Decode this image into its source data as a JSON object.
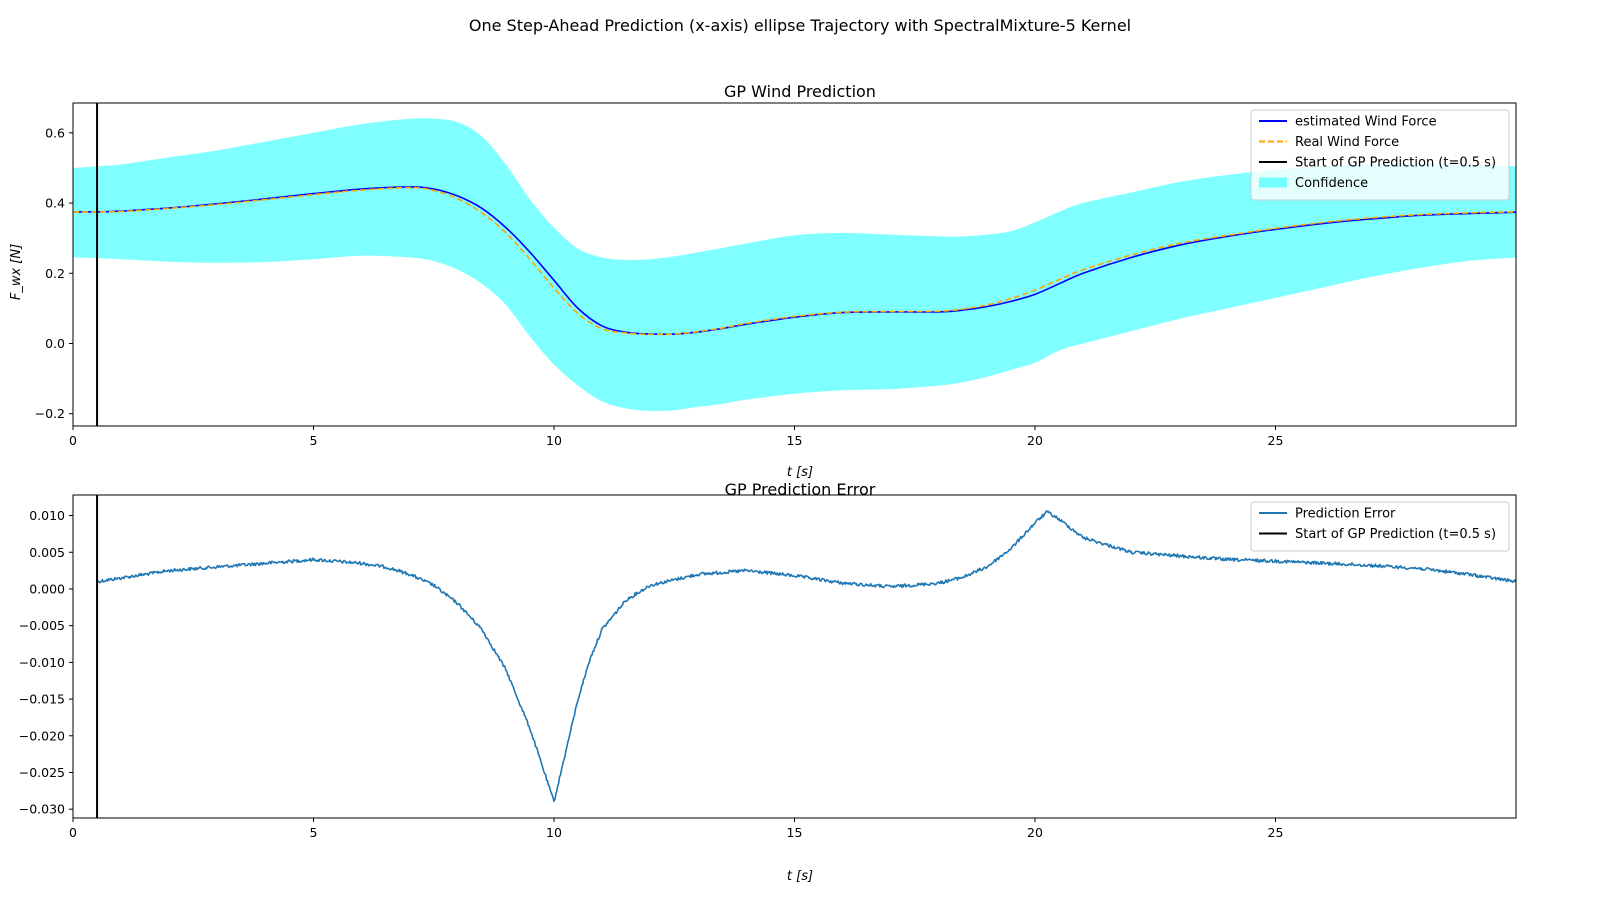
{
  "figure": {
    "suptitle": "One Step-Ahead Prediction (x-axis) ellipse Trajectory with SpectralMixture-5 Kernel"
  },
  "chart_data": [
    {
      "type": "line",
      "title": "GP Wind Prediction",
      "xlabel": "t [s]",
      "ylabel": "F_wx [N]",
      "xlim": [
        0,
        30
      ],
      "ylim": [
        -0.235,
        0.685
      ],
      "xticks": [
        0,
        5,
        10,
        15,
        20,
        25
      ],
      "xtick_labels": [
        "0",
        "5",
        "10",
        "15",
        "20",
        "25"
      ],
      "yticks": [
        -0.2,
        0.0,
        0.2,
        0.4,
        0.6
      ],
      "ytick_labels": [
        "−0.2",
        "0.0",
        "0.2",
        "0.4",
        "0.6"
      ],
      "grid": false,
      "legend_position": "upper right",
      "x": [
        0,
        0.5,
        1,
        2,
        3,
        4,
        5,
        6,
        7,
        7.5,
        8,
        8.5,
        9,
        9.5,
        10,
        10.5,
        11,
        11.5,
        12,
        12.5,
        13,
        13.5,
        14,
        15,
        16,
        17,
        18,
        18.5,
        19,
        19.5,
        20,
        20.5,
        21,
        22,
        23,
        24,
        25,
        26,
        27,
        28,
        29,
        30
      ],
      "series": [
        {
          "name": "estimated Wind Force",
          "color": "#0000ff",
          "style": "solid",
          "values": [
            0.375,
            0.375,
            0.377,
            0.386,
            0.398,
            0.412,
            0.427,
            0.44,
            0.446,
            0.44,
            0.42,
            0.385,
            0.33,
            0.26,
            0.18,
            0.1,
            0.05,
            0.032,
            0.027,
            0.027,
            0.033,
            0.043,
            0.055,
            0.075,
            0.088,
            0.09,
            0.09,
            0.095,
            0.105,
            0.12,
            0.14,
            0.17,
            0.2,
            0.245,
            0.28,
            0.305,
            0.325,
            0.342,
            0.355,
            0.365,
            0.37,
            0.374
          ]
        },
        {
          "name": "Real Wind Force",
          "color": "#ffa500",
          "style": "dashed",
          "values": [
            0.375,
            0.375,
            0.376,
            0.385,
            0.396,
            0.41,
            0.424,
            0.437,
            0.444,
            0.436,
            0.412,
            0.372,
            0.315,
            0.24,
            0.158,
            0.085,
            0.042,
            0.03,
            0.026,
            0.027,
            0.034,
            0.044,
            0.057,
            0.077,
            0.089,
            0.091,
            0.092,
            0.098,
            0.11,
            0.128,
            0.152,
            0.182,
            0.21,
            0.252,
            0.285,
            0.308,
            0.328,
            0.345,
            0.358,
            0.367,
            0.372,
            0.375
          ]
        },
        {
          "name": "Start of GP Prediction (t=0.5 s)",
          "color": "#000000",
          "style": "vline",
          "x": 0.5
        },
        {
          "name": "Confidence",
          "color": "#00ffff",
          "style": "fill",
          "upper": [
            0.5,
            0.505,
            0.51,
            0.53,
            0.55,
            0.575,
            0.6,
            0.625,
            0.64,
            0.64,
            0.63,
            0.59,
            0.51,
            0.41,
            0.33,
            0.27,
            0.245,
            0.238,
            0.24,
            0.248,
            0.26,
            0.272,
            0.285,
            0.308,
            0.315,
            0.31,
            0.305,
            0.305,
            0.31,
            0.32,
            0.345,
            0.375,
            0.4,
            0.43,
            0.46,
            0.48,
            0.495,
            0.505,
            0.51,
            0.51,
            0.508,
            0.505
          ],
          "lower": [
            0.245,
            0.243,
            0.24,
            0.233,
            0.23,
            0.232,
            0.24,
            0.25,
            0.245,
            0.235,
            0.21,
            0.17,
            0.11,
            0.02,
            -0.06,
            -0.12,
            -0.165,
            -0.185,
            -0.192,
            -0.19,
            -0.18,
            -0.172,
            -0.16,
            -0.143,
            -0.133,
            -0.13,
            -0.12,
            -0.11,
            -0.095,
            -0.075,
            -0.055,
            -0.02,
            0.0,
            0.035,
            0.07,
            0.1,
            0.13,
            0.16,
            0.19,
            0.215,
            0.235,
            0.245
          ]
        }
      ]
    },
    {
      "type": "line",
      "title": "GP Prediction Error",
      "xlabel": "t [s]",
      "ylabel": "",
      "xlim": [
        0,
        30
      ],
      "ylim": [
        -0.0312,
        0.0128
      ],
      "xticks": [
        0,
        5,
        10,
        15,
        20,
        25
      ],
      "xtick_labels": [
        "0",
        "5",
        "10",
        "15",
        "20",
        "25"
      ],
      "yticks": [
        -0.03,
        -0.025,
        -0.02,
        -0.015,
        -0.01,
        -0.005,
        0.0,
        0.005,
        0.01
      ],
      "ytick_labels": [
        "−0.030",
        "−0.025",
        "−0.020",
        "−0.015",
        "−0.010",
        "−0.005",
        "0.000",
        "0.005",
        "0.010"
      ],
      "grid": false,
      "legend_position": "upper right",
      "x": [
        0.5,
        1,
        2,
        3,
        4,
        5,
        6,
        6.5,
        7,
        7.5,
        8,
        8.5,
        9,
        9.25,
        9.5,
        9.75,
        10,
        10.25,
        10.5,
        10.75,
        11,
        11.5,
        12,
        13,
        14,
        15,
        16,
        17,
        18,
        18.5,
        19,
        19.5,
        20,
        20.25,
        20.5,
        21,
        22,
        23,
        24,
        25,
        26,
        27,
        28,
        29,
        30
      ],
      "series": [
        {
          "name": "Prediction Error",
          "color": "#1f77b4",
          "style": "solid",
          "values": [
            0.001,
            0.0015,
            0.0025,
            0.003,
            0.0035,
            0.004,
            0.0035,
            0.003,
            0.002,
            0.0005,
            -0.002,
            -0.0055,
            -0.011,
            -0.015,
            -0.019,
            -0.024,
            -0.029,
            -0.022,
            -0.015,
            -0.0095,
            -0.0055,
            -0.0015,
            0.0005,
            0.002,
            0.0025,
            0.0018,
            0.0008,
            0.0003,
            0.0008,
            0.0016,
            0.003,
            0.0055,
            0.009,
            0.0105,
            0.0095,
            0.007,
            0.005,
            0.0045,
            0.004,
            0.0038,
            0.0035,
            0.0032,
            0.0028,
            0.002,
            0.001
          ]
        },
        {
          "name": "Start of GP Prediction (t=0.5 s)",
          "color": "#000000",
          "style": "vline",
          "x": 0.5
        }
      ]
    }
  ]
}
